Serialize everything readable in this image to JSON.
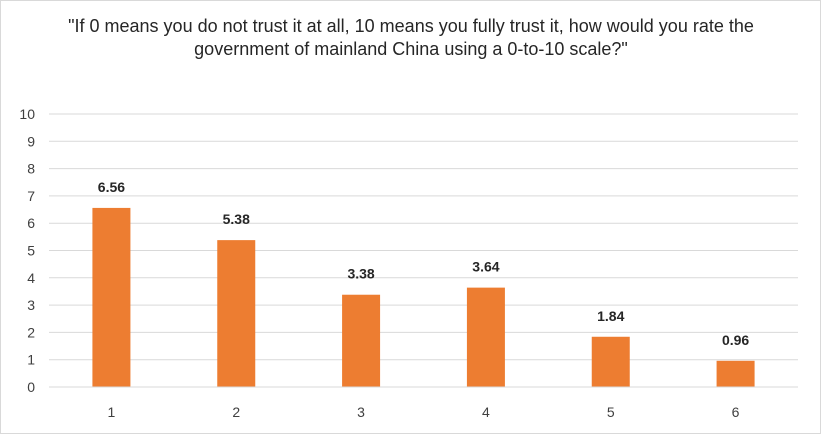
{
  "chart_data": {
    "type": "bar",
    "title": "\"If 0 means you do not trust it at all, 10 means you fully trust it, how would you rate the government of mainland China using a 0-to-10 scale?\"",
    "xlabel": "",
    "ylabel": "",
    "categories": [
      "1",
      "2",
      "3",
      "4",
      "5",
      "6"
    ],
    "values": [
      6.56,
      5.38,
      3.38,
      3.64,
      1.84,
      0.96
    ],
    "data_labels": [
      "6.56",
      "5.38",
      "3.38",
      "3.64",
      "1.84",
      "0.96"
    ],
    "y_ticks": [
      "0",
      "1",
      "2",
      "3",
      "4",
      "5",
      "6",
      "7",
      "8",
      "9",
      "10"
    ],
    "ylim": [
      0,
      10
    ],
    "grid": true,
    "legend": "none",
    "bar_color": "#ed7d31",
    "grid_color": "#d9d9d9"
  }
}
